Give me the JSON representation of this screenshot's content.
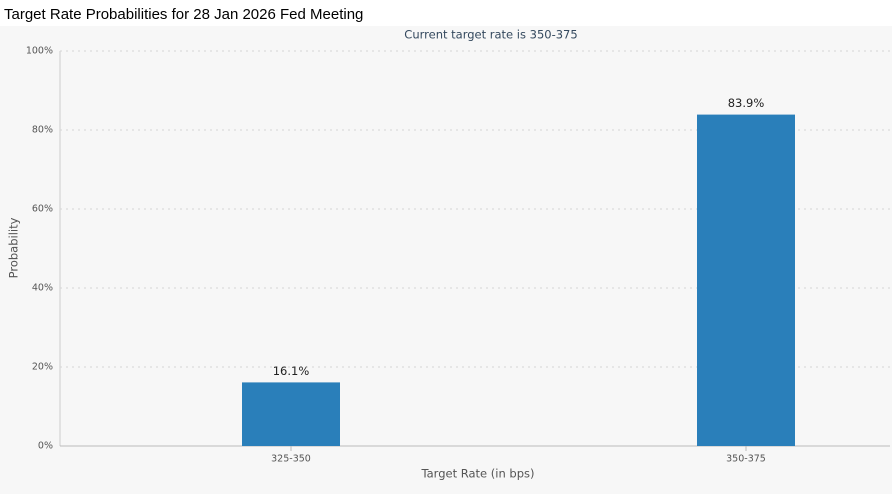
{
  "title": "Target Rate Probabilities for 28 Jan 2026 Fed Meeting",
  "chart_data": {
    "type": "bar",
    "subtitle": "Current target rate is 350-375",
    "x_label": "Target Rate (in bps)",
    "y_label": "Probability",
    "categories": [
      "325-350",
      "350-375"
    ],
    "values": [
      16.1,
      83.9
    ],
    "value_labels": [
      "16.1%",
      "83.9%"
    ],
    "color": "#2a7fba",
    "ylim": [
      0,
      100
    ],
    "yticks": [
      {
        "value": 0,
        "label": "0%"
      },
      {
        "value": 20,
        "label": "20%"
      },
      {
        "value": 40,
        "label": "40%"
      },
      {
        "value": 60,
        "label": "60%"
      },
      {
        "value": 80,
        "label": "80%"
      },
      {
        "value": 100,
        "label": "100%"
      }
    ],
    "grid": true
  }
}
